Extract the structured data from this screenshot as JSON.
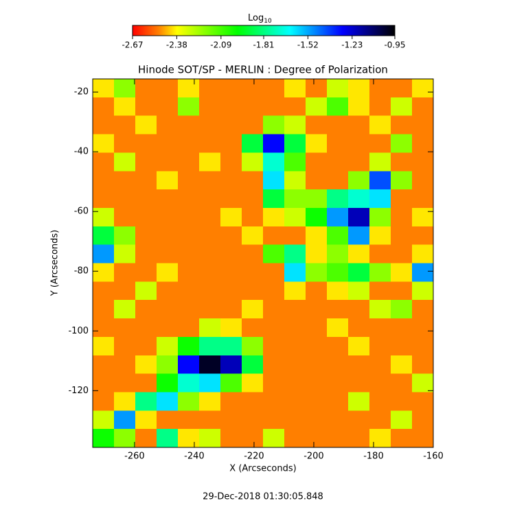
{
  "chart_data": {
    "type": "heatmap",
    "title": "Hinode SOT/SP - MERLIN : Degree of Polarization",
    "xlabel": "X (Arcseconds)",
    "ylabel": "Y (Arcseconds)",
    "date": "29-Dec-2018 01:30:05.848",
    "xlim": [
      -274,
      -160
    ],
    "ylim": [
      -139,
      -15.6
    ],
    "xticks": [
      -260,
      -240,
      -220,
      -200,
      -180,
      -160
    ],
    "yticks": [
      -20,
      -40,
      -60,
      -80,
      -100,
      -120
    ],
    "colorbar": {
      "label": "Log",
      "label_subscript": "10",
      "lim": [
        -2.67,
        -0.95
      ],
      "ticks": [
        -2.67,
        -2.38,
        -2.09,
        -1.81,
        -1.52,
        -1.23,
        -0.95
      ]
    },
    "z": [
      [
        -2.4,
        -2.2,
        -2.5,
        -2.5,
        -2.4,
        -2.5,
        -2.5,
        -2.5,
        -2.5,
        -2.4,
        -2.5,
        -2.3,
        -2.4,
        -2.5,
        -2.5,
        -2.4
      ],
      [
        -2.5,
        -2.4,
        -2.5,
        -2.5,
        -2.2,
        -2.5,
        -2.5,
        -2.5,
        -2.5,
        -2.5,
        -2.3,
        -2.1,
        -2.4,
        -2.5,
        -2.3,
        -2.5
      ],
      [
        -2.5,
        -2.5,
        -2.4,
        -2.5,
        -2.5,
        -2.5,
        -2.5,
        -2.5,
        -2.2,
        -2.3,
        -2.5,
        -2.5,
        -2.5,
        -2.4,
        -2.5,
        -2.5
      ],
      [
        -2.4,
        -2.5,
        -2.5,
        -2.5,
        -2.5,
        -2.5,
        -2.5,
        -1.9,
        -1.3,
        -1.9,
        -2.4,
        -2.5,
        -2.5,
        -2.5,
        -2.2,
        -2.5
      ],
      [
        -2.5,
        -2.3,
        -2.5,
        -2.5,
        -2.5,
        -2.4,
        -2.5,
        -2.3,
        -1.7,
        -2.1,
        -2.5,
        -2.5,
        -2.5,
        -2.3,
        -2.5,
        -2.5
      ],
      [
        -2.5,
        -2.5,
        -2.5,
        -2.4,
        -2.5,
        -2.5,
        -2.5,
        -2.5,
        -1.6,
        -2.3,
        -2.5,
        -2.5,
        -2.2,
        -1.4,
        -2.2,
        -2.5
      ],
      [
        -2.5,
        -2.5,
        -2.5,
        -2.5,
        -2.5,
        -2.5,
        -2.5,
        -2.5,
        -1.9,
        -2.2,
        -2.2,
        -1.8,
        -1.7,
        -1.6,
        -2.5,
        -2.5
      ],
      [
        -2.3,
        -2.5,
        -2.5,
        -2.5,
        -2.5,
        -2.5,
        -2.4,
        -2.5,
        -2.4,
        -2.3,
        -2.0,
        -1.5,
        -1.2,
        -2.2,
        -2.5,
        -2.4
      ],
      [
        -1.9,
        -2.2,
        -2.5,
        -2.5,
        -2.5,
        -2.5,
        -2.5,
        -2.4,
        -2.5,
        -2.5,
        -2.4,
        -2.1,
        -1.5,
        -2.4,
        -2.5,
        -2.5
      ],
      [
        -1.5,
        -2.3,
        -2.5,
        -2.5,
        -2.5,
        -2.5,
        -2.5,
        -2.5,
        -2.1,
        -1.8,
        -2.4,
        -2.2,
        -2.4,
        -2.5,
        -2.5,
        -2.4
      ],
      [
        -2.4,
        -2.5,
        -2.5,
        -2.4,
        -2.5,
        -2.5,
        -2.5,
        -2.5,
        -2.5,
        -1.6,
        -2.2,
        -2.1,
        -1.9,
        -2.2,
        -2.4,
        -1.5
      ],
      [
        -2.5,
        -2.5,
        -2.3,
        -2.5,
        -2.5,
        -2.5,
        -2.5,
        -2.5,
        -2.5,
        -2.4,
        -2.5,
        -2.4,
        -2.3,
        -2.5,
        -2.5,
        -2.3
      ],
      [
        -2.5,
        -2.3,
        -2.5,
        -2.5,
        -2.5,
        -2.5,
        -2.5,
        -2.4,
        -2.5,
        -2.5,
        -2.5,
        -2.5,
        -2.5,
        -2.3,
        -2.2,
        -2.5
      ],
      [
        -2.5,
        -2.5,
        -2.5,
        -2.5,
        -2.5,
        -2.3,
        -2.4,
        -2.5,
        -2.5,
        -2.5,
        -2.5,
        -2.4,
        -2.5,
        -2.5,
        -2.5,
        -2.5
      ],
      [
        -2.4,
        -2.5,
        -2.5,
        -2.3,
        -2.0,
        -1.8,
        -1.8,
        -2.2,
        -2.5,
        -2.5,
        -2.5,
        -2.5,
        -2.4,
        -2.5,
        -2.5,
        -2.5
      ],
      [
        -2.5,
        -2.5,
        -2.4,
        -2.2,
        -1.3,
        -1.0,
        -1.2,
        -1.9,
        -2.5,
        -2.5,
        -2.5,
        -2.5,
        -2.5,
        -2.5,
        -2.4,
        -2.5
      ],
      [
        -2.5,
        -2.5,
        -2.5,
        -2.0,
        -1.7,
        -1.6,
        -2.1,
        -2.4,
        -2.5,
        -2.5,
        -2.5,
        -2.5,
        -2.5,
        -2.5,
        -2.5,
        -2.3
      ],
      [
        -2.5,
        -2.4,
        -1.8,
        -1.6,
        -2.2,
        -2.4,
        -2.5,
        -2.5,
        -2.5,
        -2.5,
        -2.5,
        -2.5,
        -2.3,
        -2.5,
        -2.5,
        -2.5
      ],
      [
        -2.3,
        -1.5,
        -2.4,
        -2.5,
        -2.5,
        -2.5,
        -2.5,
        -2.5,
        -2.5,
        -2.5,
        -2.5,
        -2.5,
        -2.5,
        -2.5,
        -2.3,
        -2.5
      ],
      [
        -2.0,
        -2.2,
        -2.5,
        -1.8,
        -2.4,
        -2.3,
        -2.5,
        -2.5,
        -2.3,
        -2.5,
        -2.5,
        -2.5,
        -2.5,
        -2.4,
        -2.5,
        -2.5
      ]
    ]
  }
}
